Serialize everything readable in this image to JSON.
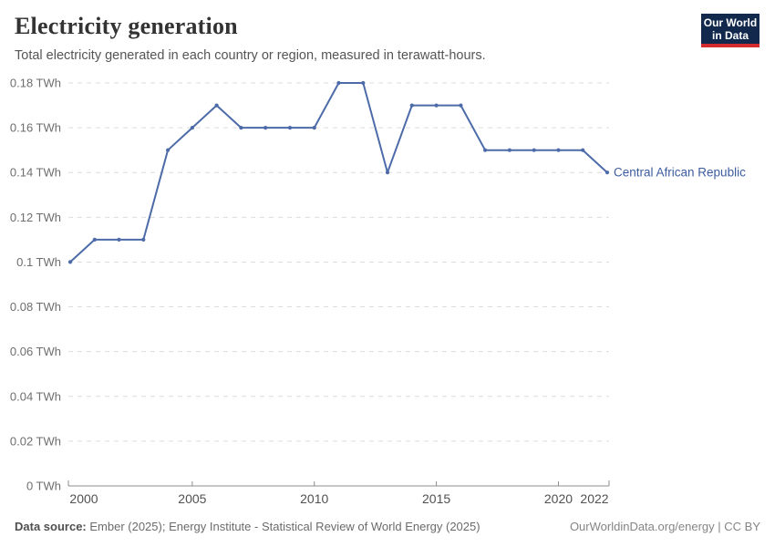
{
  "header": {
    "title": "Electricity generation",
    "subtitle": "Total electricity generated in each country or region, measured in terawatt-hours."
  },
  "logo": {
    "line1": "Our World",
    "line2": "in Data"
  },
  "colors": {
    "line": "#4c6ba8",
    "entity_label": "#3d5c9e",
    "grid": "#dcdcdc",
    "axis": "#8c8c8c",
    "y_tick_text": "#6e6e6e",
    "x_tick_text": "#515151",
    "logo_bg": "#12294d",
    "logo_accent": "#d42b2f"
  },
  "chart_data": {
    "type": "line",
    "title": "Electricity generation",
    "unit": "TWh",
    "xlim": [
      2000,
      2022
    ],
    "ylim": [
      0,
      0.18
    ],
    "grid": "horizontal-dashed",
    "legend_position": "end-of-line-label",
    "x": [
      2000,
      2001,
      2002,
      2003,
      2004,
      2005,
      2006,
      2007,
      2008,
      2009,
      2010,
      2011,
      2012,
      2013,
      2014,
      2015,
      2016,
      2017,
      2018,
      2019,
      2020,
      2021,
      2022
    ],
    "series": [
      {
        "name": "Central African Republic",
        "values": [
          0.1,
          0.11,
          0.11,
          0.11,
          0.15,
          0.16,
          0.17,
          0.16,
          0.16,
          0.16,
          0.16,
          0.18,
          0.18,
          0.14,
          0.17,
          0.17,
          0.17,
          0.15,
          0.15,
          0.15,
          0.15,
          0.15,
          0.14
        ]
      }
    ],
    "x_ticks": [
      2000,
      2005,
      2010,
      2015,
      2020,
      2022
    ],
    "y_ticks": [
      {
        "value": 0,
        "label": "0 TWh"
      },
      {
        "value": 0.02,
        "label": "0.02 TWh"
      },
      {
        "value": 0.04,
        "label": "0.04 TWh"
      },
      {
        "value": 0.06,
        "label": "0.06 TWh"
      },
      {
        "value": 0.08,
        "label": "0.08 TWh"
      },
      {
        "value": 0.1,
        "label": "0.1 TWh"
      },
      {
        "value": 0.12,
        "label": "0.12 TWh"
      },
      {
        "value": 0.14,
        "label": "0.14 TWh"
      },
      {
        "value": 0.16,
        "label": "0.16 TWh"
      },
      {
        "value": 0.18,
        "label": "0.18 TWh"
      }
    ]
  },
  "footer": {
    "source_label": "Data source:",
    "source_text": " Ember (2025); Energy Institute - Statistical Review of World Energy (2025)",
    "right_text": "OurWorldinData.org/energy | CC BY"
  }
}
